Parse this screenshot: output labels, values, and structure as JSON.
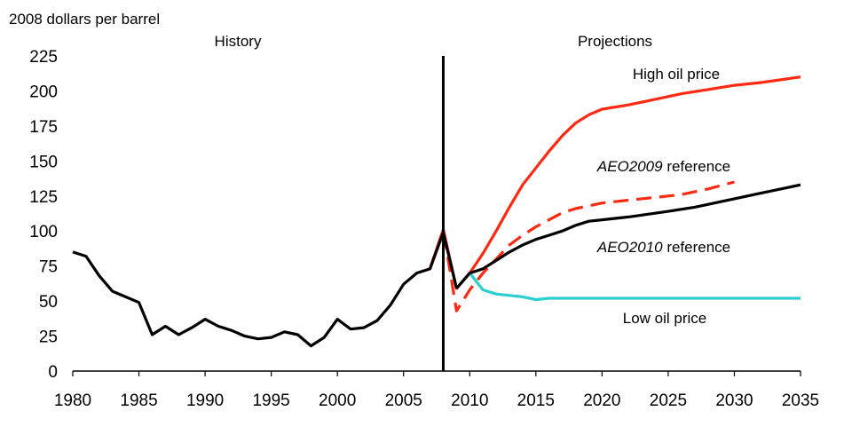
{
  "chart_data": {
    "type": "line",
    "ylabel": "2008 dollars per barrel",
    "xlim": [
      1980,
      2035
    ],
    "ylim": [
      0,
      225
    ],
    "x_ticks": [
      1980,
      1985,
      1990,
      1995,
      2000,
      2005,
      2010,
      2015,
      2020,
      2025,
      2030,
      2035
    ],
    "y_ticks": [
      0,
      25,
      50,
      75,
      100,
      125,
      150,
      175,
      200,
      225
    ],
    "grid": false,
    "divider_year": 2008,
    "region_labels": {
      "history": "History",
      "projections": "Projections"
    },
    "series": [
      {
        "key": "history",
        "color": "#000000",
        "dash": false,
        "points": [
          [
            1980,
            85
          ],
          [
            1981,
            82
          ],
          [
            1982,
            68
          ],
          [
            1983,
            57
          ],
          [
            1984,
            53
          ],
          [
            1985,
            49
          ],
          [
            1986,
            26
          ],
          [
            1987,
            32
          ],
          [
            1988,
            26
          ],
          [
            1989,
            31
          ],
          [
            1990,
            37
          ],
          [
            1991,
            32
          ],
          [
            1992,
            29
          ],
          [
            1993,
            25
          ],
          [
            1994,
            23
          ],
          [
            1995,
            24
          ],
          [
            1996,
            28
          ],
          [
            1997,
            26
          ],
          [
            1998,
            18
          ],
          [
            1999,
            24
          ],
          [
            2000,
            37
          ],
          [
            2001,
            30
          ],
          [
            2002,
            31
          ],
          [
            2003,
            36
          ],
          [
            2004,
            47
          ],
          [
            2005,
            62
          ],
          [
            2006,
            70
          ],
          [
            2007,
            73
          ],
          [
            2008,
            99
          ],
          [
            2009,
            59
          ]
        ]
      },
      {
        "key": "aeo2010_reference",
        "name_prefix": "AEO2010",
        "name_suffix": " reference",
        "color": "#000000",
        "dash": false,
        "points": [
          [
            2009,
            59
          ],
          [
            2010,
            70
          ],
          [
            2011,
            73
          ],
          [
            2012,
            79
          ],
          [
            2013,
            85
          ],
          [
            2014,
            90
          ],
          [
            2015,
            94
          ],
          [
            2016,
            97
          ],
          [
            2017,
            100
          ],
          [
            2018,
            104
          ],
          [
            2019,
            107
          ],
          [
            2020,
            108
          ],
          [
            2022,
            110
          ],
          [
            2025,
            114
          ],
          [
            2027,
            117
          ],
          [
            2030,
            123
          ],
          [
            2032,
            127
          ],
          [
            2035,
            133
          ]
        ]
      },
      {
        "key": "high_oil_price",
        "name": "High oil price",
        "color": "#ff2a12",
        "dash": false,
        "points": [
          [
            2007,
            73
          ],
          [
            2008,
            101
          ],
          [
            2009,
            59
          ],
          [
            2010,
            70
          ],
          [
            2011,
            84
          ],
          [
            2012,
            100
          ],
          [
            2013,
            117
          ],
          [
            2014,
            133
          ],
          [
            2015,
            145
          ],
          [
            2016,
            157
          ],
          [
            2017,
            168
          ],
          [
            2018,
            177
          ],
          [
            2019,
            183
          ],
          [
            2020,
            187
          ],
          [
            2022,
            190
          ],
          [
            2024,
            194
          ],
          [
            2026,
            198
          ],
          [
            2028,
            201
          ],
          [
            2030,
            204
          ],
          [
            2032,
            206
          ],
          [
            2035,
            210
          ]
        ]
      },
      {
        "key": "aeo2009_reference",
        "name_prefix": "AEO2009",
        "name_suffix": " reference",
        "color": "#ff2a12",
        "dash": true,
        "points": [
          [
            2007,
            73
          ],
          [
            2008,
            101
          ],
          [
            2009,
            43
          ],
          [
            2010,
            58
          ],
          [
            2011,
            70
          ],
          [
            2012,
            80
          ],
          [
            2013,
            90
          ],
          [
            2014,
            97
          ],
          [
            2015,
            103
          ],
          [
            2016,
            108
          ],
          [
            2017,
            113
          ],
          [
            2018,
            116
          ],
          [
            2020,
            120
          ],
          [
            2022,
            122
          ],
          [
            2024,
            124
          ],
          [
            2026,
            126
          ],
          [
            2028,
            130
          ],
          [
            2030,
            135
          ]
        ]
      },
      {
        "key": "low_oil_price",
        "name": "Low oil price",
        "color": "#2ccfcf",
        "dash": false,
        "points": [
          [
            2010,
            70
          ],
          [
            2011,
            58
          ],
          [
            2012,
            55
          ],
          [
            2013,
            54
          ],
          [
            2014,
            53
          ],
          [
            2015,
            51
          ],
          [
            2016,
            52
          ],
          [
            2020,
            52
          ],
          [
            2025,
            52
          ],
          [
            2030,
            52
          ],
          [
            2035,
            52
          ]
        ]
      }
    ]
  }
}
